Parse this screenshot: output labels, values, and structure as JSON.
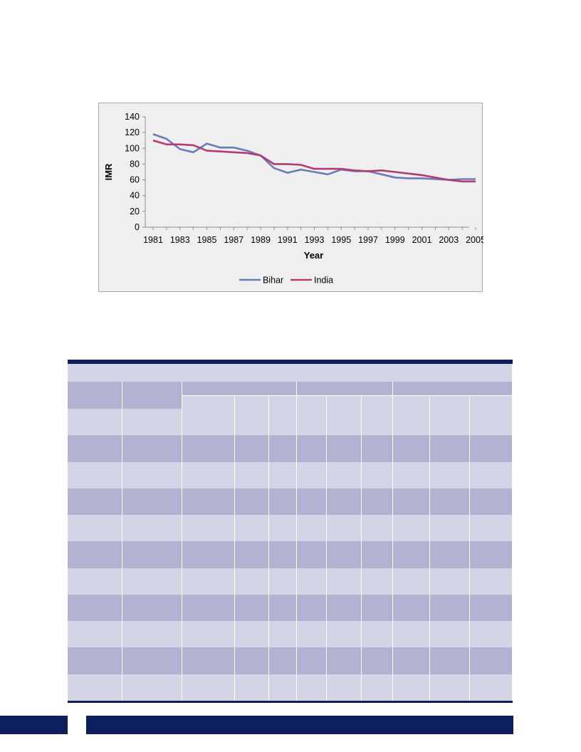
{
  "chart_data": {
    "type": "line",
    "xlabel": "Year",
    "ylabel": "IMR",
    "ylim": [
      0,
      140
    ],
    "xlim": [
      1981,
      2005
    ],
    "yticks": [
      0,
      20,
      40,
      60,
      80,
      100,
      120,
      140
    ],
    "xticks": [
      1981,
      1983,
      1985,
      1987,
      1989,
      1991,
      1993,
      1995,
      1997,
      1999,
      2001,
      2003,
      2005
    ],
    "grid": false,
    "legend_position": "bottom",
    "x": [
      1981,
      1982,
      1983,
      1984,
      1985,
      1986,
      1987,
      1988,
      1989,
      1990,
      1991,
      1992,
      1993,
      1994,
      1995,
      1996,
      1997,
      1998,
      1999,
      2000,
      2001,
      2002,
      2003,
      2004,
      2005
    ],
    "series": [
      {
        "name": "Bihar",
        "color": "#6b7bb8",
        "values": [
          118,
          112,
          99,
          95,
          106,
          101,
          101,
          97,
          91,
          75,
          69,
          73,
          70,
          67,
          73,
          71,
          71,
          67,
          63,
          62,
          62,
          61,
          60,
          61,
          61
        ]
      },
      {
        "name": "India",
        "color": "#b33b72",
        "values": [
          110,
          105,
          105,
          104,
          97,
          96,
          95,
          94,
          91,
          80,
          80,
          79,
          74,
          74,
          74,
          72,
          71,
          72,
          70,
          68,
          66,
          63,
          60,
          58,
          58
        ]
      }
    ]
  },
  "table": {
    "columns": 11,
    "body_rows": 11
  }
}
